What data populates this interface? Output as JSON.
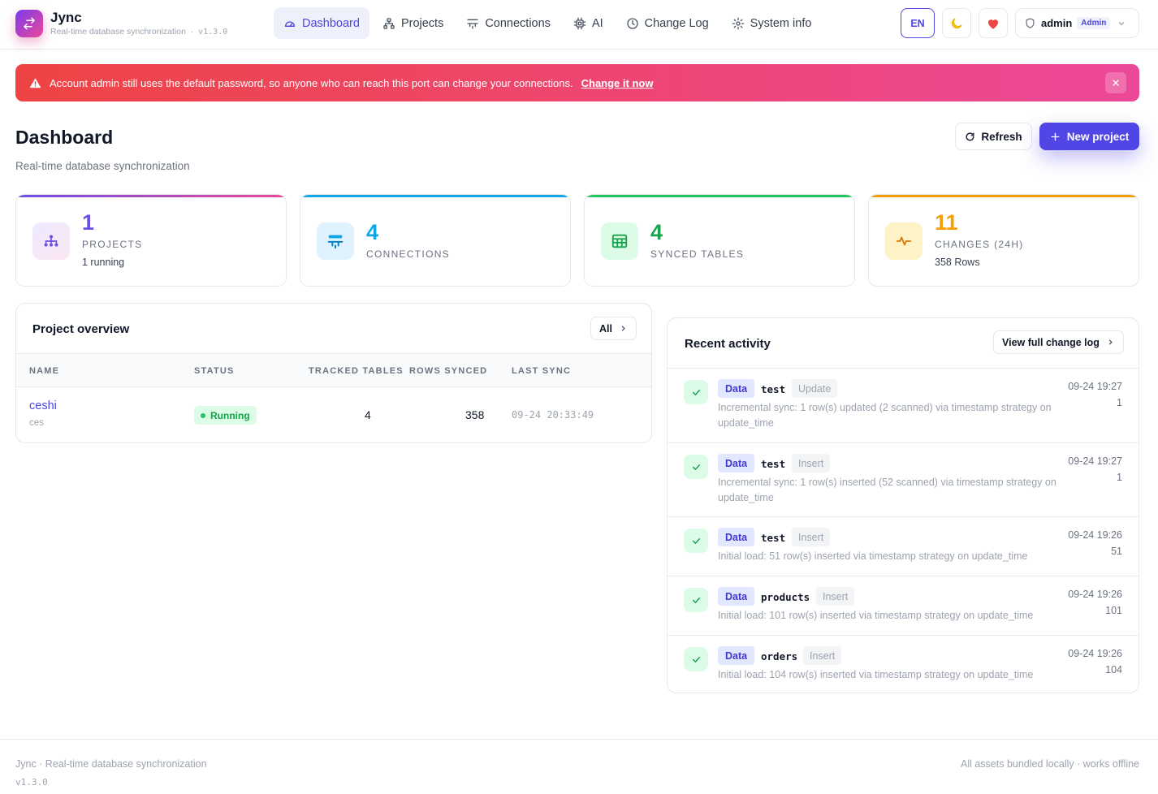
{
  "header": {
    "brand": "Jync",
    "subtitle": "Real-time database synchronization",
    "separator": "·",
    "version": "v1.3.0",
    "nav": [
      {
        "label": "Dashboard",
        "icon": "gauge-icon",
        "active": true
      },
      {
        "label": "Projects",
        "icon": "sitemap-icon"
      },
      {
        "label": "Connections",
        "icon": "server-icon"
      },
      {
        "label": "AI",
        "icon": "chip-icon"
      },
      {
        "label": "Change Log",
        "icon": "clock-icon"
      },
      {
        "label": "System info",
        "icon": "gear-icon"
      }
    ],
    "language": "EN",
    "user": {
      "name": "admin",
      "role": "Admin"
    }
  },
  "alert": {
    "message": "Account admin still uses the default password, so anyone who can reach this port can change your connections.",
    "link": "Change it now"
  },
  "page": {
    "title": "Dashboard",
    "subtitle": "Real-time database synchronization",
    "refresh_label": "Refresh",
    "new_project_label": "New project"
  },
  "stats": [
    {
      "value": "1",
      "label": "Projects",
      "sub": "1 running",
      "color": "#6d4ee8"
    },
    {
      "value": "4",
      "label": "Connections",
      "sub": "",
      "color": "#0ea5e9"
    },
    {
      "value": "4",
      "label": "Synced tables",
      "sub": "",
      "color": "#16a34a"
    },
    {
      "value": "11",
      "label": "Changes (24h)",
      "sub": "358 Rows",
      "color": "#f59e0b"
    }
  ],
  "overview": {
    "title": "Project overview",
    "all_label": "All",
    "columns": [
      "Name",
      "Status",
      "Tracked tables",
      "Rows synced",
      "Last sync"
    ],
    "rows": [
      {
        "name": "ceshi",
        "code": "ces",
        "status": "Running",
        "tables": "4",
        "rows": "358",
        "last_sync": "09-24 20:33:49"
      }
    ]
  },
  "activity": {
    "title": "Recent activity",
    "view_all_label": "View full change log",
    "items": [
      {
        "kind": "Data",
        "table": "test",
        "op": "Update",
        "desc": "Incremental sync: 1 row(s) updated (2 scanned) via timestamp strategy on update_time",
        "time": "09-24 19:27",
        "count": "1"
      },
      {
        "kind": "Data",
        "table": "test",
        "op": "Insert",
        "desc": "Incremental sync: 1 row(s) inserted (52 scanned) via timestamp strategy on update_time",
        "time": "09-24 19:27",
        "count": "1"
      },
      {
        "kind": "Data",
        "table": "test",
        "op": "Insert",
        "desc": "Initial load: 51 row(s) inserted via timestamp strategy on update_time",
        "time": "09-24 19:26",
        "count": "51"
      },
      {
        "kind": "Data",
        "table": "products",
        "op": "Insert",
        "desc": "Initial load: 101 row(s) inserted via timestamp strategy on update_time",
        "time": "09-24 19:26",
        "count": "101"
      },
      {
        "kind": "Data",
        "table": "orders",
        "op": "Insert",
        "desc": "Initial load: 104 row(s) inserted via timestamp strategy on update_time",
        "time": "09-24 19:26",
        "count": "104"
      }
    ]
  },
  "footer": {
    "left": "Jync · Real-time database synchronization",
    "version": "v1.3.0",
    "right": "All assets bundled locally · works offline"
  }
}
